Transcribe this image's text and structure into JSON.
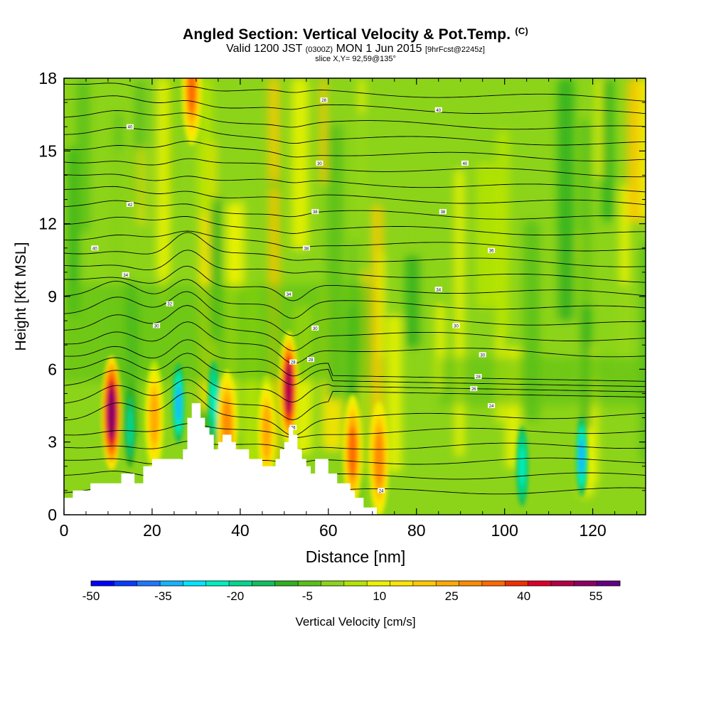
{
  "title": {
    "main": "Angled Section: Vertical Velocity & Pot.Temp.",
    "unit": "(C)",
    "valid_prefix": "Valid 1200 JST",
    "valid_utc": "(0300Z)",
    "valid_date": "MON 1 Jun 2015",
    "forecast": "[9hrFcst@2245z]",
    "slice": "slice X,Y= 92,59@135°"
  },
  "chart_data": {
    "type": "heatmap",
    "field": "Vertical Velocity",
    "overlay": "Potential temperature contours (C)",
    "xlabel": "Distance [nm]",
    "ylabel": "Height [Kft MSL]",
    "xlim": [
      0,
      132
    ],
    "ylim": [
      0,
      18
    ],
    "x_ticks": [
      "0",
      "20",
      "40",
      "60",
      "80",
      "100",
      "120"
    ],
    "x_tick_values": [
      0,
      20,
      40,
      60,
      80,
      100,
      120
    ],
    "y_ticks": [
      "0",
      "3",
      "6",
      "9",
      "12",
      "15",
      "18"
    ],
    "y_tick_values": [
      0,
      3,
      6,
      9,
      12,
      15,
      18
    ],
    "colorbar": {
      "label": "Vertical Velocity [cm/s]",
      "tick_labels": [
        "-50",
        "-35",
        "-20",
        "-5",
        "10",
        "25",
        "40",
        "55"
      ],
      "tick_values": [
        -50,
        -35,
        -20,
        -5,
        10,
        25,
        40,
        55
      ],
      "boundaries": [
        -50,
        -45,
        -40,
        -35,
        -30,
        -25,
        -20,
        -15,
        -10,
        -5,
        0,
        5,
        10,
        15,
        20,
        25,
        30,
        35,
        40,
        45,
        50,
        55,
        60
      ],
      "colors": [
        "#0000ff",
        "#0a3cff",
        "#1e78ff",
        "#14b4ff",
        "#00e6ff",
        "#00f0c0",
        "#00d890",
        "#10c060",
        "#30b020",
        "#5ac018",
        "#8cd41a",
        "#b4e400",
        "#ecf200",
        "#ffe400",
        "#ffc800",
        "#ffaa00",
        "#ff8c00",
        "#ff6a00",
        "#f03000",
        "#dc0028",
        "#b40046",
        "#8c0064",
        "#640082"
      ]
    },
    "terrain": [
      [
        0,
        0.7
      ],
      [
        2,
        0.7
      ],
      [
        2,
        1.0
      ],
      [
        6,
        1.0
      ],
      [
        6,
        1.3
      ],
      [
        13,
        1.3
      ],
      [
        13,
        1.7
      ],
      [
        16,
        1.7
      ],
      [
        16,
        1.3
      ],
      [
        18,
        1.3
      ],
      [
        18,
        2.0
      ],
      [
        20,
        2.0
      ],
      [
        20,
        2.3
      ],
      [
        27,
        2.3
      ],
      [
        27,
        2.7
      ],
      [
        28,
        2.7
      ],
      [
        28,
        4.0
      ],
      [
        29,
        4.0
      ],
      [
        29,
        4.6
      ],
      [
        31,
        4.6
      ],
      [
        31,
        4.0
      ],
      [
        32,
        4.0
      ],
      [
        32,
        3.6
      ],
      [
        33,
        3.6
      ],
      [
        33,
        3.3
      ],
      [
        34,
        3.3
      ],
      [
        34,
        2.7
      ],
      [
        35,
        2.7
      ],
      [
        35,
        3.0
      ],
      [
        36,
        3.0
      ],
      [
        36,
        3.3
      ],
      [
        38,
        3.3
      ],
      [
        38,
        3.0
      ],
      [
        39,
        3.0
      ],
      [
        39,
        2.7
      ],
      [
        42,
        2.7
      ],
      [
        42,
        2.3
      ],
      [
        45,
        2.3
      ],
      [
        45,
        2.0
      ],
      [
        48,
        2.0
      ],
      [
        48,
        2.3
      ],
      [
        49,
        2.3
      ],
      [
        49,
        2.7
      ],
      [
        50,
        2.7
      ],
      [
        50,
        3.0
      ],
      [
        51,
        3.0
      ],
      [
        51,
        3.6
      ],
      [
        52,
        3.6
      ],
      [
        52,
        3.3
      ],
      [
        53,
        3.3
      ],
      [
        53,
        2.7
      ],
      [
        54,
        2.7
      ],
      [
        54,
        2.3
      ],
      [
        55,
        2.3
      ],
      [
        55,
        2.0
      ],
      [
        56,
        2.0
      ],
      [
        56,
        1.7
      ],
      [
        57,
        1.7
      ],
      [
        57,
        2.3
      ],
      [
        60,
        2.3
      ],
      [
        60,
        1.7
      ],
      [
        62,
        1.7
      ],
      [
        62,
        1.3
      ],
      [
        65,
        1.3
      ],
      [
        65,
        1.0
      ],
      [
        66,
        1.0
      ],
      [
        66,
        0.7
      ],
      [
        68,
        0.7
      ],
      [
        68,
        0.3
      ],
      [
        71,
        0.3
      ],
      [
        71,
        0.0
      ]
    ],
    "contour_labels": [
      {
        "x": 59,
        "y": 17.1,
        "text": "28"
      },
      {
        "x": 85,
        "y": 16.7,
        "text": "40"
      },
      {
        "x": 15,
        "y": 16.0,
        "text": "40"
      },
      {
        "x": 58,
        "y": 14.5,
        "text": "30"
      },
      {
        "x": 91,
        "y": 14.5,
        "text": "40"
      },
      {
        "x": 15,
        "y": 12.8,
        "text": "42"
      },
      {
        "x": 57,
        "y": 12.5,
        "text": "38"
      },
      {
        "x": 86,
        "y": 12.5,
        "text": "38"
      },
      {
        "x": 7,
        "y": 11.0,
        "text": "40"
      },
      {
        "x": 55,
        "y": 11.0,
        "text": "38"
      },
      {
        "x": 97,
        "y": 10.9,
        "text": "36"
      },
      {
        "x": 14,
        "y": 9.9,
        "text": "34"
      },
      {
        "x": 85,
        "y": 9.3,
        "text": "34"
      },
      {
        "x": 51,
        "y": 9.1,
        "text": "34"
      },
      {
        "x": 24,
        "y": 8.7,
        "text": "32"
      },
      {
        "x": 21,
        "y": 7.8,
        "text": "30"
      },
      {
        "x": 57,
        "y": 7.7,
        "text": "30"
      },
      {
        "x": 89,
        "y": 7.8,
        "text": "30"
      },
      {
        "x": 95,
        "y": 6.6,
        "text": "30"
      },
      {
        "x": 52,
        "y": 6.3,
        "text": "28"
      },
      {
        "x": 56,
        "y": 6.4,
        "text": "28"
      },
      {
        "x": 94,
        "y": 5.7,
        "text": "28"
      },
      {
        "x": 93,
        "y": 5.2,
        "text": "26"
      },
      {
        "x": 97,
        "y": 4.5,
        "text": "24"
      },
      {
        "x": 52,
        "y": 3.6,
        "text": "26"
      },
      {
        "x": 72,
        "y": 1.0,
        "text": "24"
      }
    ],
    "updrafts": [
      {
        "x": 10.8,
        "y": 4.2,
        "peak": 55
      },
      {
        "x": 51,
        "y": 5.2,
        "peak": 50
      },
      {
        "x": 29,
        "y": 17.6,
        "peak": 35
      },
      {
        "x": 20.5,
        "y": 4.0,
        "peak": 25
      },
      {
        "x": 37,
        "y": 3.6,
        "peak": 30
      },
      {
        "x": 46,
        "y": 3.4,
        "peak": 25
      },
      {
        "x": 65.5,
        "y": 2.6,
        "peak": 35
      },
      {
        "x": 71.5,
        "y": 2.3,
        "peak": 30
      }
    ],
    "downdrafts": [
      {
        "x": 15,
        "y": 3.6,
        "peak": -20
      },
      {
        "x": 26,
        "y": 4.6,
        "peak": -35
      },
      {
        "x": 34,
        "y": 4.7,
        "peak": -25
      },
      {
        "x": 104,
        "y": 2.0,
        "peak": -25
      },
      {
        "x": 117.5,
        "y": 2.4,
        "peak": -35
      }
    ]
  }
}
